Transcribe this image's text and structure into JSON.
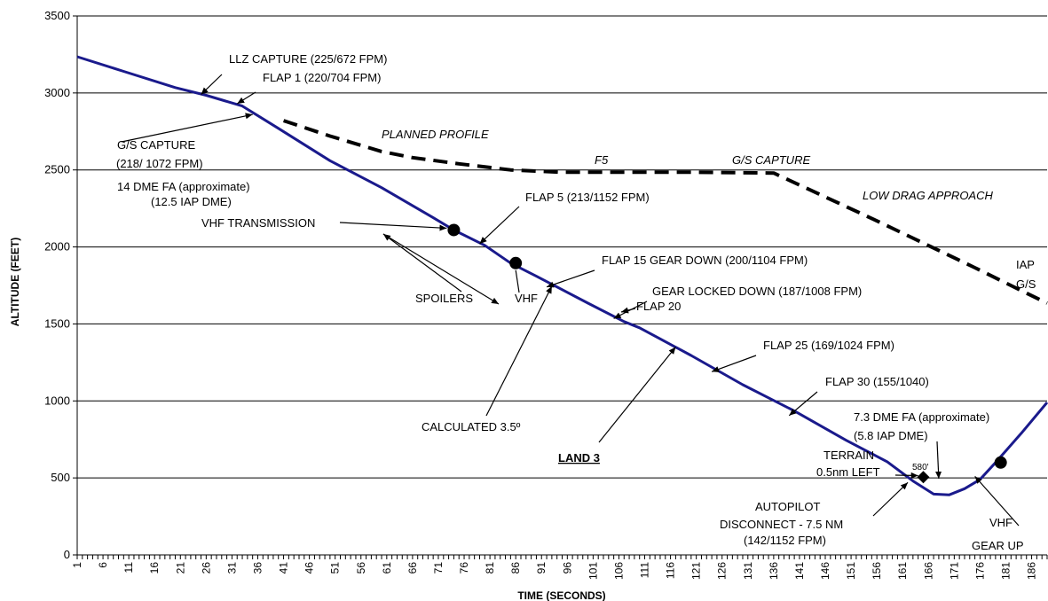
{
  "chart_data": {
    "type": "line",
    "xlabel": "TIME (SECONDS)",
    "ylabel": "ALTITUDE (FEET)",
    "xlim": [
      1,
      189
    ],
    "ylim": [
      0,
      3500
    ],
    "y_ticks": [
      0,
      500,
      1000,
      1500,
      2000,
      2500,
      3000,
      3500
    ],
    "x_tick_labels_start": 1,
    "x_tick_labels_end": 186,
    "x_tick_labels_step": 5,
    "grid": "horizontal",
    "colors": {
      "actual": "#1a1a8c",
      "planned": "#000000",
      "grid": "#000000"
    },
    "series": [
      {
        "style": "solid",
        "points": [
          [
            1,
            3235
          ],
          [
            10,
            3140
          ],
          [
            20,
            3035
          ],
          [
            26,
            2985
          ],
          [
            33,
            2915
          ],
          [
            40,
            2770
          ],
          [
            50,
            2560
          ],
          [
            60,
            2385
          ],
          [
            70,
            2190
          ],
          [
            74,
            2110
          ],
          [
            80,
            2010
          ],
          [
            85,
            1895
          ],
          [
            90,
            1810
          ],
          [
            100,
            1635
          ],
          [
            107,
            1515
          ],
          [
            110,
            1475
          ],
          [
            120,
            1295
          ],
          [
            130,
            1105
          ],
          [
            140,
            935
          ],
          [
            150,
            745
          ],
          [
            158,
            605
          ],
          [
            163,
            480
          ],
          [
            167,
            395
          ],
          [
            170,
            390
          ],
          [
            173,
            430
          ],
          [
            176,
            490
          ],
          [
            179,
            600
          ],
          [
            184,
            790
          ],
          [
            189,
            990
          ]
        ]
      },
      {
        "style": "dashed",
        "points": [
          [
            41,
            2820
          ],
          [
            50,
            2720
          ],
          [
            60,
            2620
          ],
          [
            66,
            2580
          ],
          [
            75,
            2540
          ],
          [
            85,
            2500
          ],
          [
            95,
            2485
          ],
          [
            105,
            2485
          ],
          [
            120,
            2485
          ],
          [
            136,
            2480
          ],
          [
            145,
            2340
          ],
          [
            155,
            2185
          ],
          [
            165,
            2025
          ],
          [
            175,
            1865
          ],
          [
            185,
            1700
          ],
          [
            189,
            1635
          ]
        ]
      }
    ],
    "markers": [
      {
        "x": 74,
        "y": 2110,
        "label": "VHF TRANSMISSION"
      },
      {
        "x": 86,
        "y": 1895,
        "label": "VHF"
      },
      {
        "x": 180,
        "y": 600,
        "label": "VHF"
      }
    ],
    "terrain_markers": [
      {
        "x": 165,
        "y": 505,
        "label": "580'"
      }
    ],
    "annotations": [
      {
        "text": "LLZ CAPTURE    (225/672 FPM)",
        "arrow_to": [
          25,
          2990
        ]
      },
      {
        "text": "FLAP 1   (220/704 FPM)",
        "arrow_to": [
          32,
          2930
        ]
      },
      {
        "text": "G/S CAPTURE",
        "arrow_to": [
          35,
          2860
        ]
      },
      {
        "text": "(218/ 1072 FPM)"
      },
      {
        "text": "14 DME FA (approximate)"
      },
      {
        "text": "(12.5 IAP DME)"
      },
      {
        "text": "PLANNED PROFILE",
        "italic": true
      },
      {
        "text": "F5",
        "italic": true
      },
      {
        "text": "G/S CAPTURE",
        "italic": true
      },
      {
        "text": "LOW DRAG APPROACH",
        "italic": true
      },
      {
        "text": "FLAP 5   (213/1152 FPM)",
        "arrow_to": [
          79,
          2020
        ]
      },
      {
        "text": "FLAP 15 GEAR DOWN    (200/1104 FPM)",
        "arrow_to": [
          92,
          1740
        ]
      },
      {
        "text": "GEAR LOCKED DOWN (187/1008 FPM)",
        "arrow_to": [
          105,
          1535
        ]
      },
      {
        "text": "FLAP 20"
      },
      {
        "text": "SPOILERS"
      },
      {
        "text": "VHF"
      },
      {
        "text": "IAP"
      },
      {
        "text": "G/S"
      },
      {
        "text": "CALCULATED 3.5º",
        "arrow_to": [
          93,
          1745
        ]
      },
      {
        "text": "LAND 3",
        "bold": true,
        "underline": true,
        "arrow_to": [
          117,
          1350
        ]
      },
      {
        "text": "FLAP 25 (169/1024 FPM)",
        "arrow_to": [
          124,
          1190
        ]
      },
      {
        "text": "FLAP 30   (155/1040)",
        "arrow_to": [
          139,
          905
        ]
      },
      {
        "text": "7.3 DME FA (approximate)"
      },
      {
        "text": "(5.8 IAP DME)",
        "arrow_to": [
          168,
          495
        ]
      },
      {
        "text": "TERRAIN"
      },
      {
        "text": "0.5nm LEFT",
        "arrow_to": [
          164,
          515
        ]
      },
      {
        "text": "580'"
      },
      {
        "text": "AUTOPILOT"
      },
      {
        "text": "DISCONNECT - 7.5 NM",
        "arrow_to": [
          162,
          470
        ]
      },
      {
        "text": "(142/1152 FPM)"
      },
      {
        "text": "VHF"
      },
      {
        "text": "GEAR UP",
        "arrow_to": [
          175,
          510
        ]
      }
    ]
  }
}
